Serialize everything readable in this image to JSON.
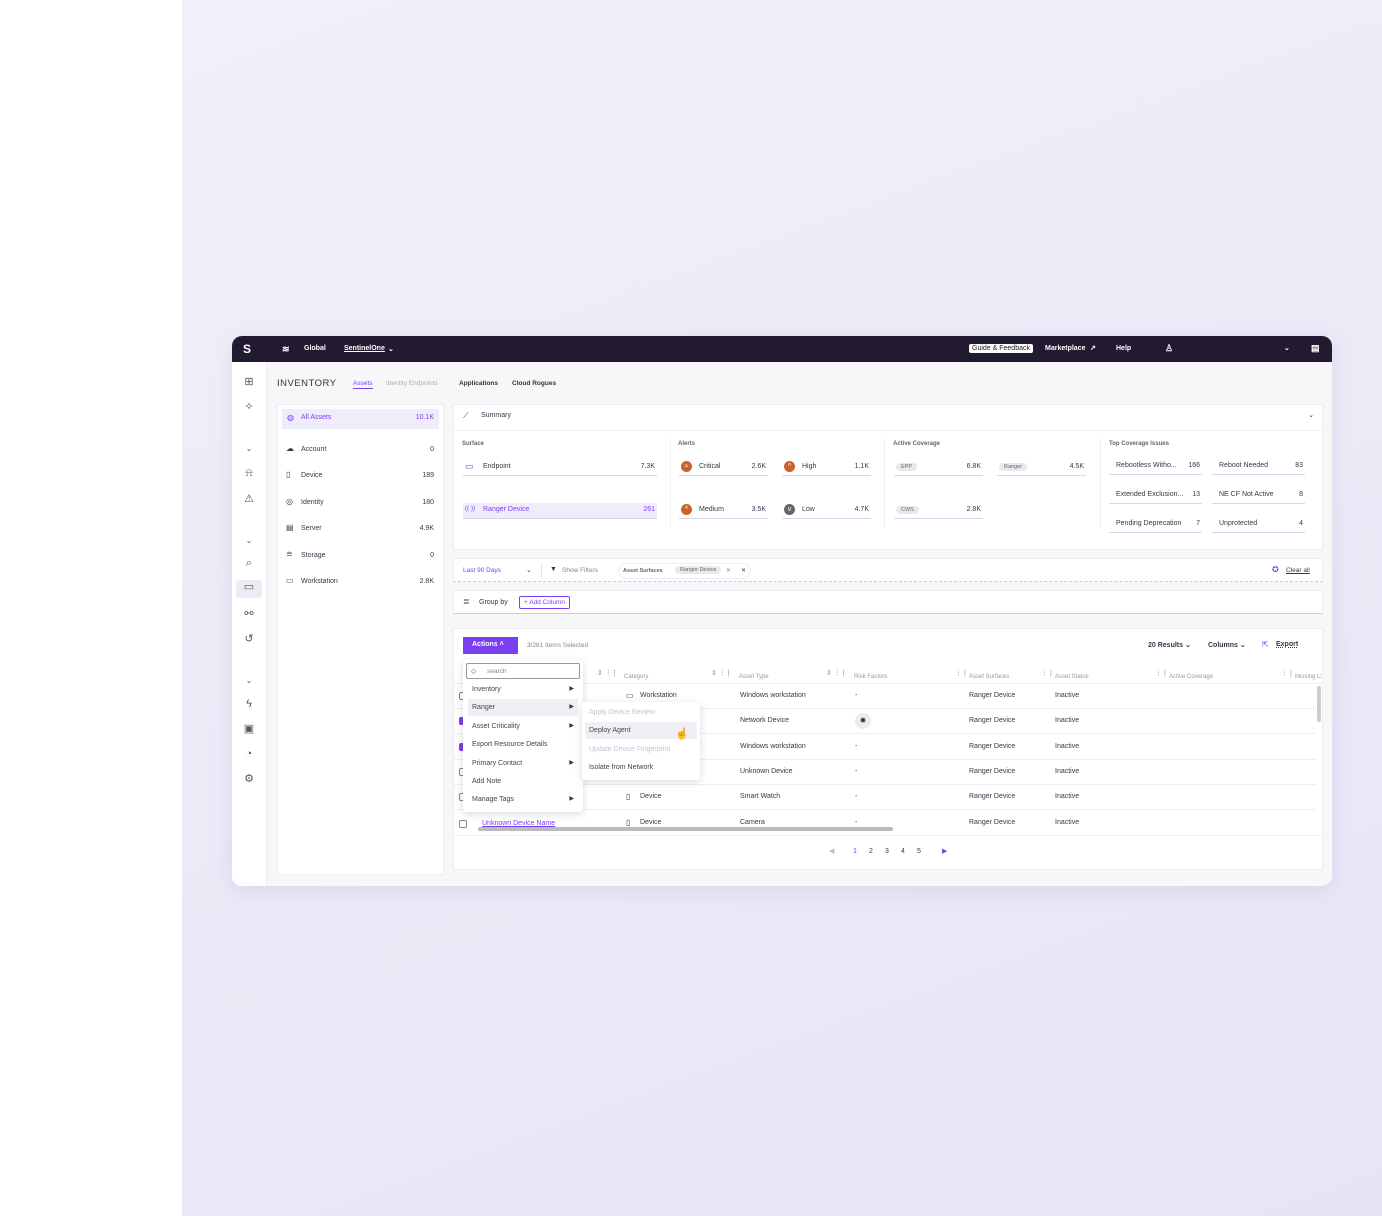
{
  "topbar": {
    "scope": "Global",
    "account": "SentinelOne",
    "guide": "Guide & Feedback",
    "marketplace": "Marketplace",
    "help": "Help"
  },
  "page": {
    "title": "INVENTORY",
    "tabs": [
      {
        "label": "Assets",
        "active": true
      },
      {
        "label": "Identity Endpoints"
      },
      {
        "label": "Applications"
      },
      {
        "label": "Cloud Rogues"
      }
    ]
  },
  "sidebar": {
    "items": [
      {
        "label": "All Assets",
        "count": "10.1K",
        "icon": "globe-icon"
      },
      {
        "label": "Account",
        "count": "0",
        "icon": "cloud-icon"
      },
      {
        "label": "Device",
        "count": "189",
        "icon": "device-icon"
      },
      {
        "label": "Identity",
        "count": "180",
        "icon": "user-circle-icon"
      },
      {
        "label": "Server",
        "count": "4.9K",
        "icon": "server-icon"
      },
      {
        "label": "Storage",
        "count": "0",
        "icon": "database-icon"
      },
      {
        "label": "Workstation",
        "count": "2.8K",
        "icon": "laptop-icon"
      }
    ]
  },
  "summary": {
    "title": "Summary",
    "surface": {
      "label": "Surface",
      "items": [
        {
          "label": "Endpoint",
          "value": "7.3K"
        },
        {
          "label": "Ranger Device",
          "value": "261"
        }
      ]
    },
    "alerts": {
      "label": "Alerts",
      "items": [
        {
          "label": "Critical",
          "value": "2.6K"
        },
        {
          "label": "High",
          "value": "1.1K"
        },
        {
          "label": "Medium",
          "value": "3.5K"
        },
        {
          "label": "Low",
          "value": "4.7K"
        }
      ]
    },
    "coverage": {
      "label": "Active Coverage",
      "items": [
        {
          "label": "EPP",
          "value": "6.8K"
        },
        {
          "label": "Ranger",
          "value": "4.5K"
        },
        {
          "label": "CWS",
          "value": "2.8K"
        }
      ]
    },
    "issues": {
      "label": "Top Coverage Issues",
      "items": [
        {
          "label": "Rebootless Witho...",
          "value": "166"
        },
        {
          "label": "Reboot Needed",
          "value": "83"
        },
        {
          "label": "Extended Exclusion...",
          "value": "13"
        },
        {
          "label": "NE CF Not Active",
          "value": "8"
        },
        {
          "label": "Pending Deprecation",
          "value": "7"
        },
        {
          "label": "Unprotected",
          "value": "4"
        }
      ]
    }
  },
  "filters": {
    "date": "Last 90 Days",
    "show": "Show Filters",
    "chip_key": "Asset Surfaces",
    "chip_value": "Ranger Device",
    "clear": "Clear all"
  },
  "groupby": {
    "label": "Group by",
    "add": "+ Add Column"
  },
  "table": {
    "actions": "Actions",
    "selected": "3/261 Items Selected",
    "results": "20 Results",
    "columns": "Columns",
    "export": "Export",
    "headers": [
      "Category",
      "Asset Type",
      "Risk Factors",
      "Asset Surfaces",
      "Asset Status",
      "Active Coverage",
      "Missing C"
    ],
    "rows": [
      {
        "checked": false,
        "name": "",
        "category": "Workstation",
        "type": "Windows workstation",
        "risk": "-",
        "surface": "Ranger Device",
        "status": "Inactive"
      },
      {
        "checked": true,
        "name": "",
        "category": "",
        "type": "Network Device",
        "risk": "bug",
        "surface": "Ranger Device",
        "status": "Inactive"
      },
      {
        "checked": true,
        "name": "",
        "category": "",
        "type": "Windows workstation",
        "risk": "-",
        "surface": "Ranger Device",
        "status": "Inactive"
      },
      {
        "checked": false,
        "name": "",
        "category": "",
        "type": "Unknown Device",
        "risk": "-",
        "surface": "Ranger Device",
        "status": "Inactive"
      },
      {
        "checked": false,
        "name": "",
        "category": "Device",
        "type": "Smart Watch",
        "risk": "-",
        "surface": "Ranger Device",
        "status": "Inactive"
      },
      {
        "checked": false,
        "name": "Unknown Device Name",
        "category": "Device",
        "type": "Camera",
        "risk": "-",
        "surface": "Ranger Device",
        "status": "Inactive"
      }
    ],
    "pages": [
      "1",
      "2",
      "3",
      "4",
      "5"
    ]
  },
  "actions_menu": {
    "search_placeholder": "search",
    "items": [
      "Inventory",
      "Ranger",
      "Asset Criticality",
      "Export Resource Details",
      "Primary Contact",
      "Add Note",
      "Manage Tags"
    ],
    "submenu": [
      {
        "label": "Apply Device Review",
        "disabled": true
      },
      {
        "label": "Deploy Agent",
        "disabled": false
      },
      {
        "label": "Update Device Fingerprint",
        "disabled": true
      },
      {
        "label": "Isolate from Network",
        "disabled": false
      }
    ]
  },
  "colors": {
    "accent": "#7b3ff2",
    "topbar": "#221a30",
    "alert": "#c8612a"
  }
}
